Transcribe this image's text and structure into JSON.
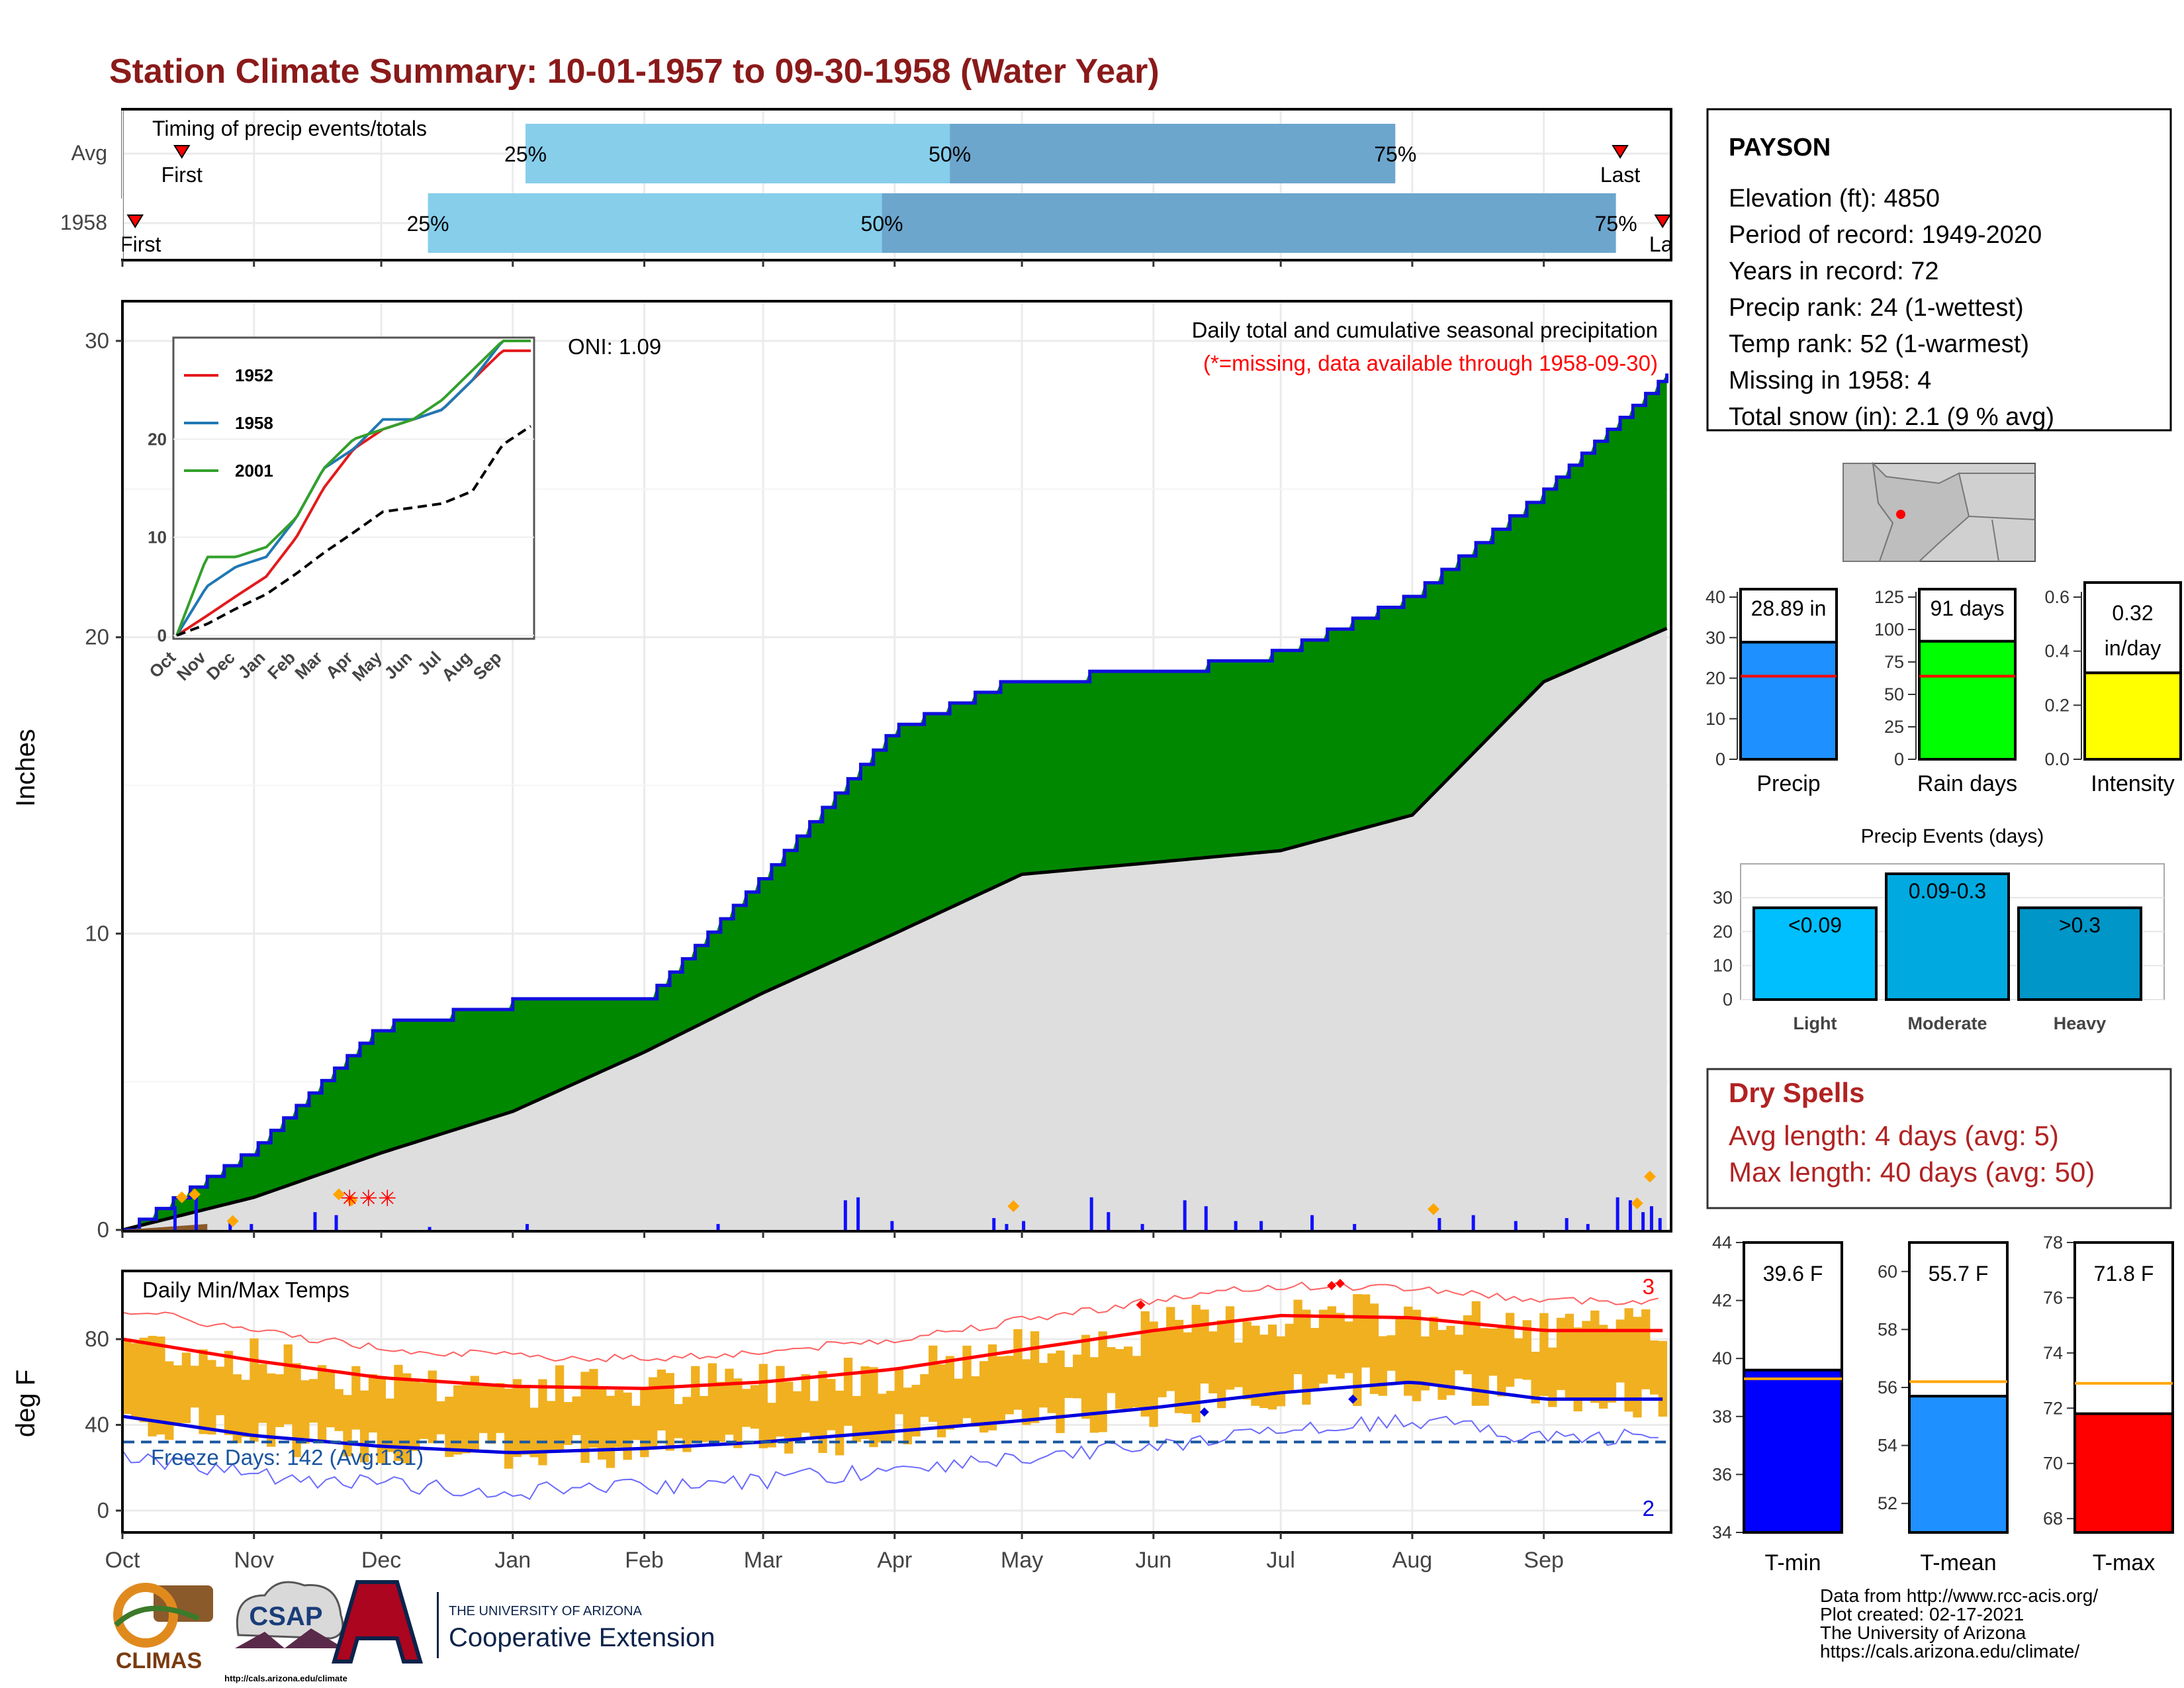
{
  "title": "Station Climate Summary: 10-01-1957 to 09-30-1958 (Water Year)",
  "colors": {
    "title": "#8B1A1A",
    "green_fill": "#008800",
    "gray_fill": "#dedede",
    "bar_blue": "#1010ff",
    "light_blue": "#87ceeb",
    "mid_blue": "#6ca6cd",
    "temp_bars": "#f0b020",
    "red": "#ff0000",
    "blue_line": "#0000dd",
    "freeze": "#1a55a0",
    "dry_spells": "#b22222",
    "precip_bar": "#1e90ff",
    "raindays_bar": "#00ff00",
    "intensity_bar": "#ffff00",
    "tmin_bar": "#0000ff",
    "tmean_bar": "#1e90ff",
    "tmax_bar": "#ff0000",
    "avg_line_temp": "#ffa500"
  },
  "timing": {
    "label": "Timing of precip events/totals",
    "rows": [
      "Avg",
      "1958"
    ],
    "avg": {
      "first_label": "First",
      "last_label": "Last",
      "first": "Oct 15",
      "p25": "Jan",
      "p50": "May",
      "p75": "Jul",
      "last": "Sep 28",
      "pct_labels": [
        "25%",
        "50%",
        "75%"
      ]
    },
    "y1958": {
      "first_label": "First",
      "last_label": "Last",
      "first": "Oct 3",
      "p25": "Dec 10",
      "p50": "Apr 10",
      "p75": "Aug 10",
      "last": "Sep 30",
      "pct_labels": [
        "25%",
        "50%",
        "75%"
      ]
    }
  },
  "precip_panel": {
    "ylabel": "Inches",
    "oni": "ONI: 1.09",
    "note1": "Daily total and cumulative seasonal precipitation",
    "note2": "(*=missing, data available through 1958-09-30)",
    "yticks": [
      "0",
      "10",
      "20",
      "30"
    ]
  },
  "inset": {
    "legend": [
      "1952",
      "1958",
      "2001"
    ],
    "legend_colors": [
      "#e31a1c",
      "#1f78b4",
      "#33a02c"
    ],
    "yticks": [
      "0",
      "10",
      "20"
    ],
    "xticks": [
      "Oct",
      "Nov",
      "Dec",
      "Jan",
      "Feb",
      "Mar",
      "Apr",
      "May",
      "Jun",
      "Jul",
      "Aug",
      "Sep"
    ]
  },
  "temp_panel": {
    "ylabel": "deg F",
    "label": "Daily Min/Max Temps",
    "freeze": "Freeze Days: 142 (Avg:131)",
    "count_top": "3",
    "count_bottom": "2",
    "yticks": [
      "0",
      "40",
      "80"
    ]
  },
  "months": [
    "Oct",
    "Nov",
    "Dec",
    "Jan",
    "Feb",
    "Mar",
    "Apr",
    "May",
    "Jun",
    "Jul",
    "Aug",
    "Sep"
  ],
  "station": {
    "name": "PAYSON",
    "lines": [
      "Elevation (ft): 4850",
      "Period of record: 1949-2020",
      "Years in record: 72",
      "Precip rank: 24 (1-wettest)",
      "Temp rank: 52 (1-warmest)",
      "Missing in 1958: 4",
      "Total snow (in): 2.1 (9 % avg)"
    ]
  },
  "mini_bars": [
    {
      "label": "Precip",
      "value_text": "28.89 in",
      "value": 28.89,
      "avg": 20.5,
      "max": 40,
      "ticks": [
        "0",
        "10",
        "20",
        "30",
        "40"
      ]
    },
    {
      "label": "Rain days",
      "value_text": "91 days",
      "value": 91,
      "avg": 64,
      "max": 125,
      "ticks": [
        "0",
        "25",
        "50",
        "75",
        "100",
        "125"
      ]
    },
    {
      "label": "Intensity",
      "value_text": "0.32 in/day",
      "value_line1": "0.32",
      "value_line2": "in/day",
      "value": 0.32,
      "avg": 0.32,
      "max": 0.6,
      "ticks": [
        "0.0",
        "0.2",
        "0.4",
        "0.6"
      ]
    }
  ],
  "events": {
    "title": "Precip Events (days)",
    "categories": [
      "Light",
      "Moderate",
      "Heavy"
    ],
    "labels": [
      "<0.09",
      "0.09-0.3",
      ">0.3"
    ],
    "values": [
      27,
      37,
      27
    ],
    "ticks": [
      "0",
      "10",
      "20",
      "30"
    ]
  },
  "dry": {
    "title": "Dry Spells",
    "line1": "Avg length: 4 days (avg: 5)",
    "line2": "Max length: 40 days (avg: 50)"
  },
  "temp_bars": [
    {
      "label": "T-min",
      "value_text": "39.6 F",
      "value": 39.6,
      "avg": 39.3,
      "min": 34,
      "max": 44,
      "ticks": [
        "34",
        "36",
        "38",
        "40",
        "42",
        "44"
      ]
    },
    {
      "label": "T-mean",
      "value_text": "55.7 F",
      "value": 55.7,
      "avg": 56.2,
      "min": 51,
      "max": 61,
      "ticks": [
        "52",
        "54",
        "56",
        "58",
        "60"
      ]
    },
    {
      "label": "T-max",
      "value_text": "71.8 F",
      "value": 71.8,
      "avg": 72.9,
      "min": 67.5,
      "max": 78,
      "ticks": [
        "68",
        "70",
        "72",
        "74",
        "76",
        "78"
      ]
    }
  ],
  "footer": {
    "line1": "Data from http://www.rcc-acis.org/",
    "line2": "Plot created: 02-17-2021",
    "line3": "The University of Arizona",
    "line4": "https://cals.arizona.edu/climate/"
  },
  "logos": {
    "climas": "CLIMAS",
    "csap": "CSAP",
    "csap_url": "http://cals.arizona.edu/climate",
    "ua_top": "THE UNIVERSITY OF ARIZONA",
    "ua_bottom": "Cooperative Extension"
  },
  "chart_data": [
    {
      "type": "area",
      "title": "Daily total and cumulative seasonal precipitation",
      "ylabel": "Inches",
      "ylim": [
        0,
        31
      ],
      "x": [
        "Oct",
        "Nov",
        "Dec",
        "Jan",
        "Feb",
        "Mar",
        "Apr",
        "May",
        "Jun",
        "Jul",
        "Aug",
        "Sep",
        "Sep 30"
      ],
      "series": [
        {
          "name": "1958",
          "values": [
            0,
            2.8,
            7,
            7.8,
            7.8,
            12,
            17,
            18.8,
            18.9,
            19.6,
            21.5,
            25,
            28.9
          ]
        },
        {
          "values": [
            0,
            1.1,
            2.6,
            4,
            6,
            8,
            10,
            12,
            12.4,
            12.8,
            14,
            18.5,
            20.3
          ]
        }
      ]
    },
    {
      "type": "line",
      "title": "Daily Min/Max Temps",
      "ylabel": "deg F",
      "ylim": [
        -8,
        105
      ],
      "x": [
        "Oct",
        "Nov",
        "Dec",
        "Jan",
        "Feb",
        "Mar",
        "Apr",
        "May",
        "Jun",
        "Jul",
        "Aug",
        "Sep"
      ],
      "series": [
        {
          "values": [
            80,
            70,
            62,
            58,
            57,
            60,
            66,
            75,
            84,
            91,
            90,
            84
          ]
        },
        {
          "values": [
            44,
            35,
            30,
            27,
            29,
            32,
            37,
            42,
            48,
            55,
            60,
            52
          ]
        }
      ]
    },
    {
      "type": "line",
      "x": [
        "Oct",
        "Nov",
        "Dec",
        "Jan",
        "Feb",
        "Mar",
        "Apr",
        "May",
        "Jun",
        "Jul",
        "Aug",
        "Sep"
      ],
      "ylim": [
        0,
        30
      ],
      "series": [
        {
          "name": "1952",
          "values": [
            0,
            2,
            4,
            6,
            10,
            15,
            19,
            21,
            22,
            23,
            26,
            29
          ]
        },
        {
          "name": "1958",
          "values": [
            0,
            5,
            7,
            8,
            12,
            17,
            19,
            22,
            22,
            23,
            26,
            30
          ]
        },
        {
          "name": "2001",
          "values": [
            0,
            8,
            8,
            9,
            12,
            17,
            20,
            21,
            22,
            24,
            27,
            30
          ]
        }
      ]
    }
  ]
}
